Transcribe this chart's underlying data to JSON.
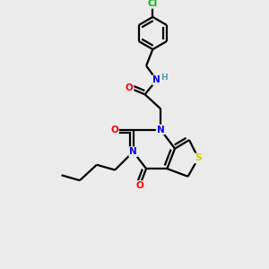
{
  "bg_color": "#ebebeb",
  "atom_colors": {
    "C": "#000000",
    "N": "#0000ff",
    "O": "#ff0000",
    "S": "#cccc00",
    "Cl": "#00bb00",
    "H": "#5599aa"
  },
  "bond_color": "#000000",
  "bond_width": 1.6
}
